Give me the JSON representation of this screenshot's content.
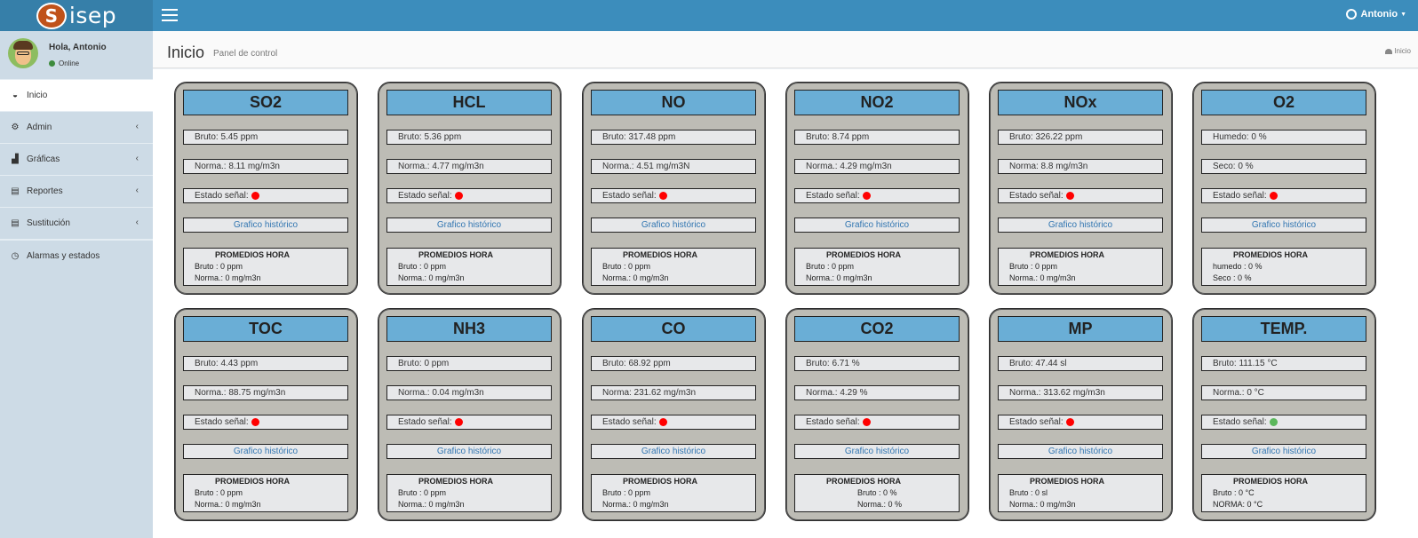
{
  "brand": {
    "logo_letter": "S",
    "name": "isep"
  },
  "header": {
    "user_name": "Antonio"
  },
  "sidebar": {
    "greeting": "Hola, Antonio",
    "status": "Online",
    "items": [
      {
        "label": "Inicio",
        "icon": "dashboard-icon"
      },
      {
        "label": "Admin",
        "icon": "cogs-icon"
      },
      {
        "label": "Gráficas",
        "icon": "area-chart-icon"
      },
      {
        "label": "Reportes",
        "icon": "file-excel-icon"
      },
      {
        "label": "Sustitución",
        "icon": "file-excel-icon"
      },
      {
        "label": "Alarmas y estados",
        "icon": "clock-icon"
      }
    ]
  },
  "content_header": {
    "title": "Inicio",
    "subtitle": "Panel de control",
    "breadcrumb": "Inicio"
  },
  "colors": {
    "signal_red": "#ff0000",
    "signal_green": "#5cb85c",
    "title_blue": "#6aaed6",
    "card_bg": "#bdbcb5",
    "link_blue": "#3276b1"
  },
  "cards": [
    {
      "title": "SO2",
      "r1": "Bruto: 5.45 ppm",
      "r2": "Norma.: 8.11 mg/m3n",
      "signal_label": "Estado señal:",
      "signal": "red",
      "link": "Grafico histórico",
      "avg_title": "PROMEDIOS HORA",
      "avg1": "Bruto    : 0 ppm",
      "avg2": "Norma.: 0 mg/m3n"
    },
    {
      "title": "HCL",
      "r1": "Bruto: 5.36 ppm",
      "r2": "Norma.: 4.77 mg/m3n",
      "signal_label": "Estado señal:",
      "signal": "red",
      "link": "Grafico histórico",
      "avg_title": "PROMEDIOS HORA",
      "avg1": "Bruto    : 0 ppm",
      "avg2": "Norma.: 0 mg/m3n"
    },
    {
      "title": "NO",
      "r1": "Bruto: 317.48 ppm",
      "r2": "Norma.: 4.51 mg/m3N",
      "signal_label": "Estado señal:",
      "signal": "red",
      "link": "Grafico histórico",
      "avg_title": "PROMEDIOS HORA",
      "avg1": "Bruto    : 0 ppm",
      "avg2": "Norma.: 0 mg/m3n"
    },
    {
      "title": "NO2",
      "r1": "Bruto: 8.74 ppm",
      "r2": "Norma.: 4.29 mg/m3n",
      "signal_label": "Estado señal:",
      "signal": "red",
      "link": "Grafico histórico",
      "avg_title": "PROMEDIOS HORA",
      "avg1": "Bruto    : 0 ppm",
      "avg2": "Norma.: 0 mg/m3n"
    },
    {
      "title": "NOx",
      "r1": "Bruto: 326.22 ppm",
      "r2": "Norma: 8.8 mg/m3n",
      "signal_label": "Estado señal:",
      "signal": "red",
      "link": "Grafico histórico",
      "avg_title": "PROMEDIOS HORA",
      "avg1": "Bruto    : 0 ppm",
      "avg2": "Norma.: 0 mg/m3n"
    },
    {
      "title": "O2",
      "r1": "Humedo: 0 %",
      "r2": "Seco: 0 %",
      "signal_label": "Estado señal:",
      "signal": "red",
      "link": "Grafico histórico",
      "avg_title": "PROMEDIOS HORA",
      "avg1": "humedo : 0 %",
      "avg2": "Seco        : 0 %"
    },
    {
      "title": "TOC",
      "r1": "Bruto: 4.43 ppm",
      "r2": "Norma.: 88.75 mg/m3n",
      "signal_label": "Estado señal:",
      "signal": "red",
      "link": "Grafico histórico",
      "avg_title": "PROMEDIOS HORA",
      "avg1": "Bruto    : 0 ppm",
      "avg2": "Norma.: 0 mg/m3n"
    },
    {
      "title": "NH3",
      "r1": "Bruto: 0 ppm",
      "r2": "Norma.: 0.04 mg/m3n",
      "signal_label": "Estado señal:",
      "signal": "red",
      "link": "Grafico histórico",
      "avg_title": "PROMEDIOS HORA",
      "avg1": "Bruto    : 0 ppm",
      "avg2": "Norma.: 0 mg/m3n"
    },
    {
      "title": "CO",
      "r1": "Bruto: 68.92 ppm",
      "r2": "Norma: 231.62 mg/m3n",
      "signal_label": "Estado señal:",
      "signal": "red",
      "link": "Grafico histórico",
      "avg_title": "PROMEDIOS HORA",
      "avg1": "Bruto    : 0 ppm",
      "avg2": "Norma.: 0 mg/m3n"
    },
    {
      "title": "CO2",
      "r1": "Bruto: 6.71 %",
      "r2": "Norma.: 4.29 %",
      "signal_label": "Estado señal:",
      "signal": "red",
      "link": "Grafico histórico",
      "avg_title": "PROMEDIOS HORA",
      "avg1": "Bruto    : 0 %",
      "avg2": "Norma.: 0 %"
    },
    {
      "title": "MP",
      "r1": "Bruto: 47.44 sl",
      "r2": "Norma.: 313.62 mg/m3n",
      "signal_label": "Estado señal:",
      "signal": "red",
      "link": "Grafico histórico",
      "avg_title": "PROMEDIOS HORA",
      "avg1": "Bruto    : 0 sl",
      "avg2": "Norma.: 0 mg/m3n"
    },
    {
      "title": "TEMP.",
      "r1": "Bruto: 111.15 °C",
      "r2": "Norma.: 0 °C",
      "signal_label": "Estado señal:",
      "signal": "green",
      "link": "Grafico histórico",
      "avg_title": "PROMEDIOS HORA",
      "avg1": "Bruto    : 0 °C",
      "avg2": "NORMA: 0 °C"
    }
  ]
}
